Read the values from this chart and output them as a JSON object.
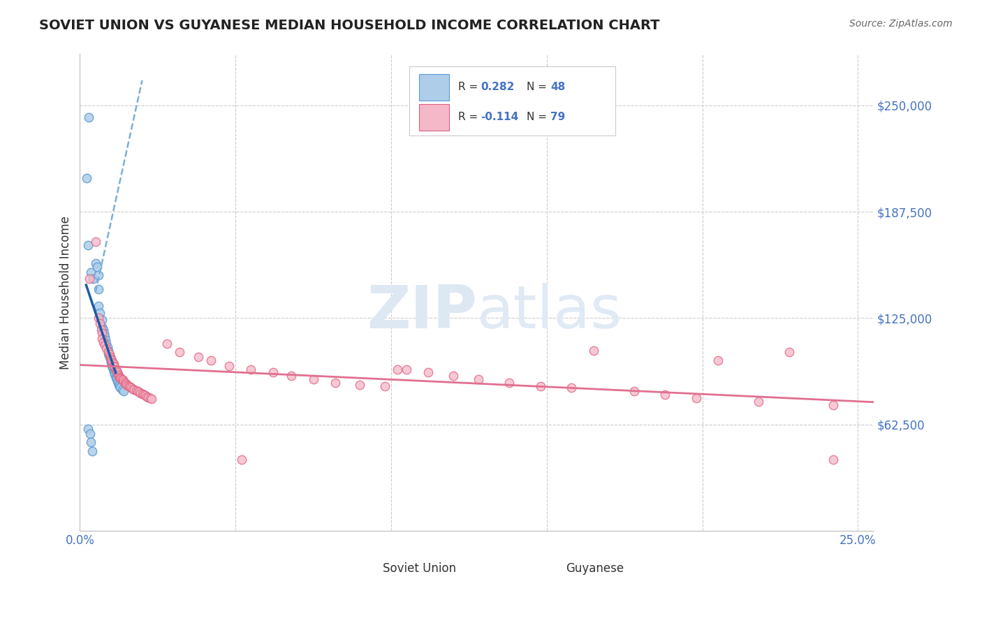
{
  "title": "SOVIET UNION VS GUYANESE MEDIAN HOUSEHOLD INCOME CORRELATION CHART",
  "source": "Source: ZipAtlas.com",
  "ylabel": "Median Household Income",
  "xlim": [
    0.0,
    0.255
  ],
  "ylim": [
    0,
    280000
  ],
  "yticks": [
    0,
    62500,
    125000,
    187500,
    250000
  ],
  "ytick_labels": [
    "",
    "$62,500",
    "$125,000",
    "$187,500",
    "$250,000"
  ],
  "xticks": [
    0.0,
    0.05,
    0.1,
    0.15,
    0.2,
    0.25
  ],
  "xtick_labels": [
    "0.0%",
    "",
    "",
    "",
    "",
    "25.0%"
  ],
  "blue_R": 0.282,
  "blue_N": 48,
  "pink_R": -0.114,
  "pink_N": 79,
  "blue_color": "#aecde8",
  "blue_edge_color": "#5b9bd5",
  "pink_color": "#f5b8c8",
  "pink_edge_color": "#e06080",
  "blue_line_color": "#1a5ca8",
  "blue_dash_color": "#7ab0d8",
  "pink_line_color": "#e07090",
  "grid_color": "#cccccc",
  "label_color": "#4472c4",
  "title_color": "#222222",
  "watermark_color": "#dde8f3",
  "blue_x": [
    0.0028,
    0.0022,
    0.0025,
    0.0035,
    0.0042,
    0.005,
    0.0055,
    0.006,
    0.006,
    0.006,
    0.0065,
    0.007,
    0.0072,
    0.0075,
    0.0078,
    0.008,
    0.0082,
    0.0085,
    0.0088,
    0.009,
    0.0092,
    0.0095,
    0.0095,
    0.0098,
    0.01,
    0.01,
    0.0102,
    0.0103,
    0.0105,
    0.0108,
    0.0108,
    0.011,
    0.0112,
    0.0112,
    0.0115,
    0.0115,
    0.0118,
    0.012,
    0.0122,
    0.0125,
    0.0128,
    0.013,
    0.0135,
    0.014,
    0.0025,
    0.0032,
    0.0035,
    0.004
  ],
  "blue_y": [
    243000,
    207000,
    168000,
    152000,
    148000,
    157000,
    155000,
    150000,
    142000,
    132000,
    128000,
    124000,
    120000,
    118000,
    116000,
    114000,
    112000,
    110000,
    108000,
    106000,
    104000,
    103000,
    102000,
    101000,
    100000,
    99000,
    98000,
    97000,
    96000,
    95000,
    94500,
    93500,
    93000,
    92000,
    91500,
    90000,
    89500,
    88000,
    87000,
    86000,
    85000,
    84000,
    83000,
    82000,
    60000,
    57000,
    52000,
    47000
  ],
  "pink_x": [
    0.003,
    0.005,
    0.006,
    0.0065,
    0.0068,
    0.007,
    0.0072,
    0.0075,
    0.008,
    0.0085,
    0.009,
    0.0095,
    0.0098,
    0.01,
    0.0102,
    0.0105,
    0.0108,
    0.011,
    0.0112,
    0.0115,
    0.0118,
    0.012,
    0.0122,
    0.0125,
    0.0128,
    0.013,
    0.0132,
    0.0135,
    0.0138,
    0.014,
    0.0145,
    0.0148,
    0.015,
    0.0155,
    0.0158,
    0.016,
    0.0165,
    0.017,
    0.0175,
    0.018,
    0.0185,
    0.019,
    0.0195,
    0.02,
    0.0205,
    0.021,
    0.0215,
    0.022,
    0.0225,
    0.023,
    0.028,
    0.032,
    0.038,
    0.042,
    0.048,
    0.055,
    0.062,
    0.068,
    0.075,
    0.082,
    0.09,
    0.098,
    0.105,
    0.112,
    0.12,
    0.128,
    0.138,
    0.148,
    0.158,
    0.165,
    0.178,
    0.188,
    0.198,
    0.205,
    0.218,
    0.228,
    0.242,
    0.052,
    0.102,
    0.242
  ],
  "pink_y": [
    148000,
    170000,
    125000,
    122000,
    118000,
    116000,
    113000,
    111000,
    109000,
    107000,
    105000,
    104000,
    102000,
    101000,
    100000,
    99000,
    98000,
    97000,
    96500,
    95000,
    94000,
    93000,
    92000,
    91000,
    90500,
    90000,
    89500,
    89000,
    88500,
    88000,
    87000,
    86500,
    86000,
    85500,
    85000,
    84500,
    84000,
    83500,
    83000,
    82500,
    82000,
    81500,
    81000,
    80500,
    80000,
    79500,
    79000,
    78500,
    78000,
    77500,
    110000,
    105000,
    102000,
    100000,
    97000,
    95000,
    93000,
    91000,
    89000,
    87000,
    86000,
    85000,
    95000,
    93000,
    91000,
    89000,
    87000,
    85000,
    84000,
    106000,
    82000,
    80000,
    78000,
    100000,
    76000,
    105000,
    74000,
    42000,
    95000,
    42000
  ]
}
